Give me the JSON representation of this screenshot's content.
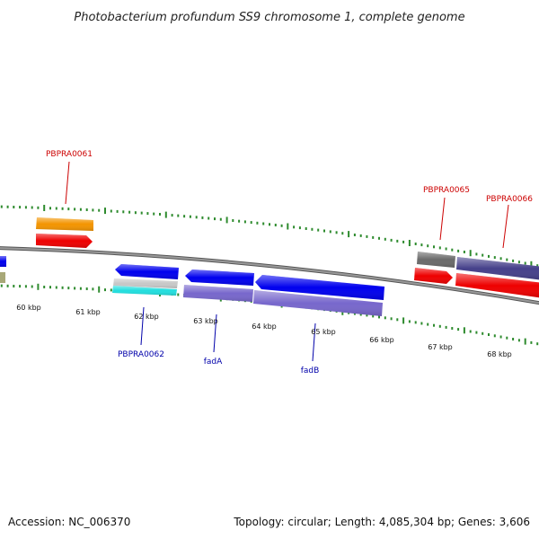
{
  "title": "Photobacterium profundum SS9 chromosome 1, complete genome",
  "footer": {
    "accession": "Accession: NC_006370",
    "topology": "Topology: circular; Length: 4,085,304 bp; Genes: 3,606"
  },
  "kbp_labels": [
    "60 kbp",
    "61 kbp",
    "62 kbp",
    "63 kbp",
    "64 kbp",
    "65 kbp",
    "66 kbp",
    "67 kbp",
    "68 kbp"
  ],
  "gene_labels": {
    "pbpra0061": "PBPRA0061",
    "pbpra0062": "PBPRA0062",
    "fada": "fadA",
    "fadb": "fadB",
    "pbpra0065": "PBPRA0065",
    "pbpra0066": "PBPRA0066"
  },
  "colors": {
    "backbone": "#777777",
    "tick": "#2e8b2e",
    "orange": "#f39400",
    "red": "#ee0000",
    "blue": "#0000ee",
    "lavender": "#7767cc",
    "slate": "#45408a",
    "gray": "#6a6a6a",
    "silver": "#c8c8c8",
    "cyan": "#22dede",
    "olive": "#a8a878",
    "label_red": "#cc0000",
    "label_blue": "#0000aa"
  }
}
